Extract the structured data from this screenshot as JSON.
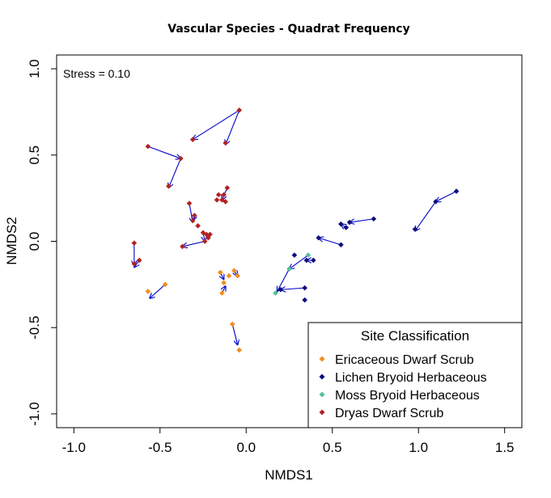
{
  "chart_data": {
    "type": "scatter",
    "title": "Vascular Species - Quadrat Frequency",
    "xlabel": "NMDS1",
    "ylabel": "NMDS2",
    "xlim": [
      -1.1,
      1.6
    ],
    "ylim": [
      -1.08,
      1.08
    ],
    "xticks": [
      -1.0,
      -0.5,
      0.0,
      0.5,
      1.0,
      1.5
    ],
    "xtick_labels": [
      "-1.0",
      "-0.5",
      "0.0",
      "0.5",
      "1.0",
      "1.5"
    ],
    "yticks": [
      -1.0,
      -0.5,
      0.0,
      0.5,
      1.0
    ],
    "ytick_labels": [
      "-1.0",
      "-0.5",
      "0.0",
      "0.5",
      "1.0"
    ],
    "annotation": "Stress = 0.10",
    "legend": {
      "title": "Site Classification",
      "position": "bottom-right"
    },
    "series": [
      {
        "name": "Ericaceous Dwarf Scrub",
        "color": "#F28E1C",
        "points": [
          [
            -0.47,
            -0.25
          ],
          [
            -0.57,
            -0.29
          ],
          [
            -0.15,
            -0.18
          ],
          [
            -0.13,
            -0.24
          ],
          [
            -0.14,
            -0.3
          ],
          [
            -0.1,
            -0.2
          ],
          [
            -0.07,
            -0.17
          ],
          [
            -0.05,
            -0.2
          ],
          [
            -0.08,
            -0.48
          ],
          [
            -0.04,
            -0.63
          ]
        ],
        "arrows": [
          [
            [
              -0.47,
              -0.25
            ],
            [
              -0.56,
              -0.33
            ]
          ],
          [
            [
              -0.15,
              -0.18
            ],
            [
              -0.13,
              -0.22
            ]
          ],
          [
            [
              -0.14,
              -0.3
            ],
            [
              -0.12,
              -0.26
            ]
          ],
          [
            [
              -0.07,
              -0.17
            ],
            [
              -0.05,
              -0.2
            ]
          ],
          [
            [
              -0.08,
              -0.48
            ],
            [
              -0.05,
              -0.6
            ]
          ]
        ]
      },
      {
        "name": "Lichen Bryoid Herbaceous",
        "color": "#0D0E7A",
        "points": [
          [
            1.22,
            0.29
          ],
          [
            1.1,
            0.23
          ],
          [
            0.98,
            0.07
          ],
          [
            0.74,
            0.13
          ],
          [
            0.6,
            0.11
          ],
          [
            0.58,
            0.08
          ],
          [
            0.55,
            0.1
          ],
          [
            0.42,
            0.02
          ],
          [
            0.55,
            -0.02
          ],
          [
            0.39,
            -0.11
          ],
          [
            0.35,
            -0.11
          ],
          [
            0.28,
            -0.08
          ],
          [
            0.34,
            -0.27
          ],
          [
            0.34,
            -0.34
          ],
          [
            0.2,
            -0.28
          ]
        ],
        "arrows": [
          [
            [
              1.22,
              0.29
            ],
            [
              1.1,
              0.23
            ]
          ],
          [
            [
              1.1,
              0.23
            ],
            [
              0.98,
              0.06
            ]
          ],
          [
            [
              0.74,
              0.13
            ],
            [
              0.6,
              0.11
            ]
          ],
          [
            [
              0.58,
              0.08
            ],
            [
              0.55,
              0.1
            ]
          ],
          [
            [
              0.55,
              -0.02
            ],
            [
              0.42,
              0.02
            ]
          ],
          [
            [
              0.39,
              -0.11
            ],
            [
              0.35,
              -0.11
            ]
          ],
          [
            [
              0.34,
              -0.27
            ],
            [
              0.2,
              -0.28
            ]
          ]
        ]
      },
      {
        "name": "Moss Bryoid Herbaceous",
        "color": "#52C295",
        "points": [
          [
            0.36,
            -0.08
          ],
          [
            0.25,
            -0.16
          ],
          [
            0.17,
            -0.3
          ]
        ],
        "arrows": [
          [
            [
              0.36,
              -0.08
            ],
            [
              0.25,
              -0.16
            ]
          ],
          [
            [
              0.25,
              -0.16
            ],
            [
              0.18,
              -0.29
            ]
          ]
        ]
      },
      {
        "name": "Dryas Dwarf Scrub",
        "color": "#B22222",
        "points": [
          [
            -0.04,
            0.76
          ],
          [
            -0.12,
            0.57
          ],
          [
            -0.31,
            0.59
          ],
          [
            -0.57,
            0.55
          ],
          [
            -0.38,
            0.48
          ],
          [
            -0.45,
            0.32
          ],
          [
            -0.11,
            0.31
          ],
          [
            -0.16,
            0.27
          ],
          [
            -0.13,
            0.27
          ],
          [
            -0.17,
            0.24
          ],
          [
            -0.14,
            0.24
          ],
          [
            -0.12,
            0.23
          ],
          [
            -0.33,
            0.22
          ],
          [
            -0.3,
            0.15
          ],
          [
            -0.31,
            0.12
          ],
          [
            -0.28,
            0.09
          ],
          [
            -0.25,
            0.05
          ],
          [
            -0.23,
            0.04
          ],
          [
            -0.21,
            0.04
          ],
          [
            -0.24,
            0.0
          ],
          [
            -0.22,
            0.02
          ],
          [
            -0.37,
            -0.03
          ],
          [
            -0.65,
            -0.01
          ],
          [
            -0.65,
            -0.13
          ],
          [
            -0.62,
            -0.11
          ]
        ],
        "arrows": [
          [
            [
              -0.04,
              0.76
            ],
            [
              -0.12,
              0.56
            ]
          ],
          [
            [
              -0.04,
              0.76
            ],
            [
              -0.31,
              0.59
            ]
          ],
          [
            [
              -0.57,
              0.55
            ],
            [
              -0.38,
              0.48
            ]
          ],
          [
            [
              -0.38,
              0.48
            ],
            [
              -0.45,
              0.31
            ]
          ],
          [
            [
              -0.11,
              0.31
            ],
            [
              -0.14,
              0.24
            ]
          ],
          [
            [
              -0.33,
              0.22
            ],
            [
              -0.31,
              0.11
            ]
          ],
          [
            [
              -0.3,
              0.15
            ],
            [
              -0.31,
              0.12
            ]
          ],
          [
            [
              -0.25,
              0.05
            ],
            [
              -0.24,
              0.0
            ]
          ],
          [
            [
              -0.24,
              0.0
            ],
            [
              -0.37,
              -0.03
            ]
          ],
          [
            [
              -0.65,
              -0.01
            ],
            [
              -0.65,
              -0.14
            ]
          ],
          [
            [
              -0.62,
              -0.11
            ],
            [
              -0.65,
              -0.15
            ]
          ]
        ]
      }
    ]
  },
  "arrow_color": "#0000CC"
}
